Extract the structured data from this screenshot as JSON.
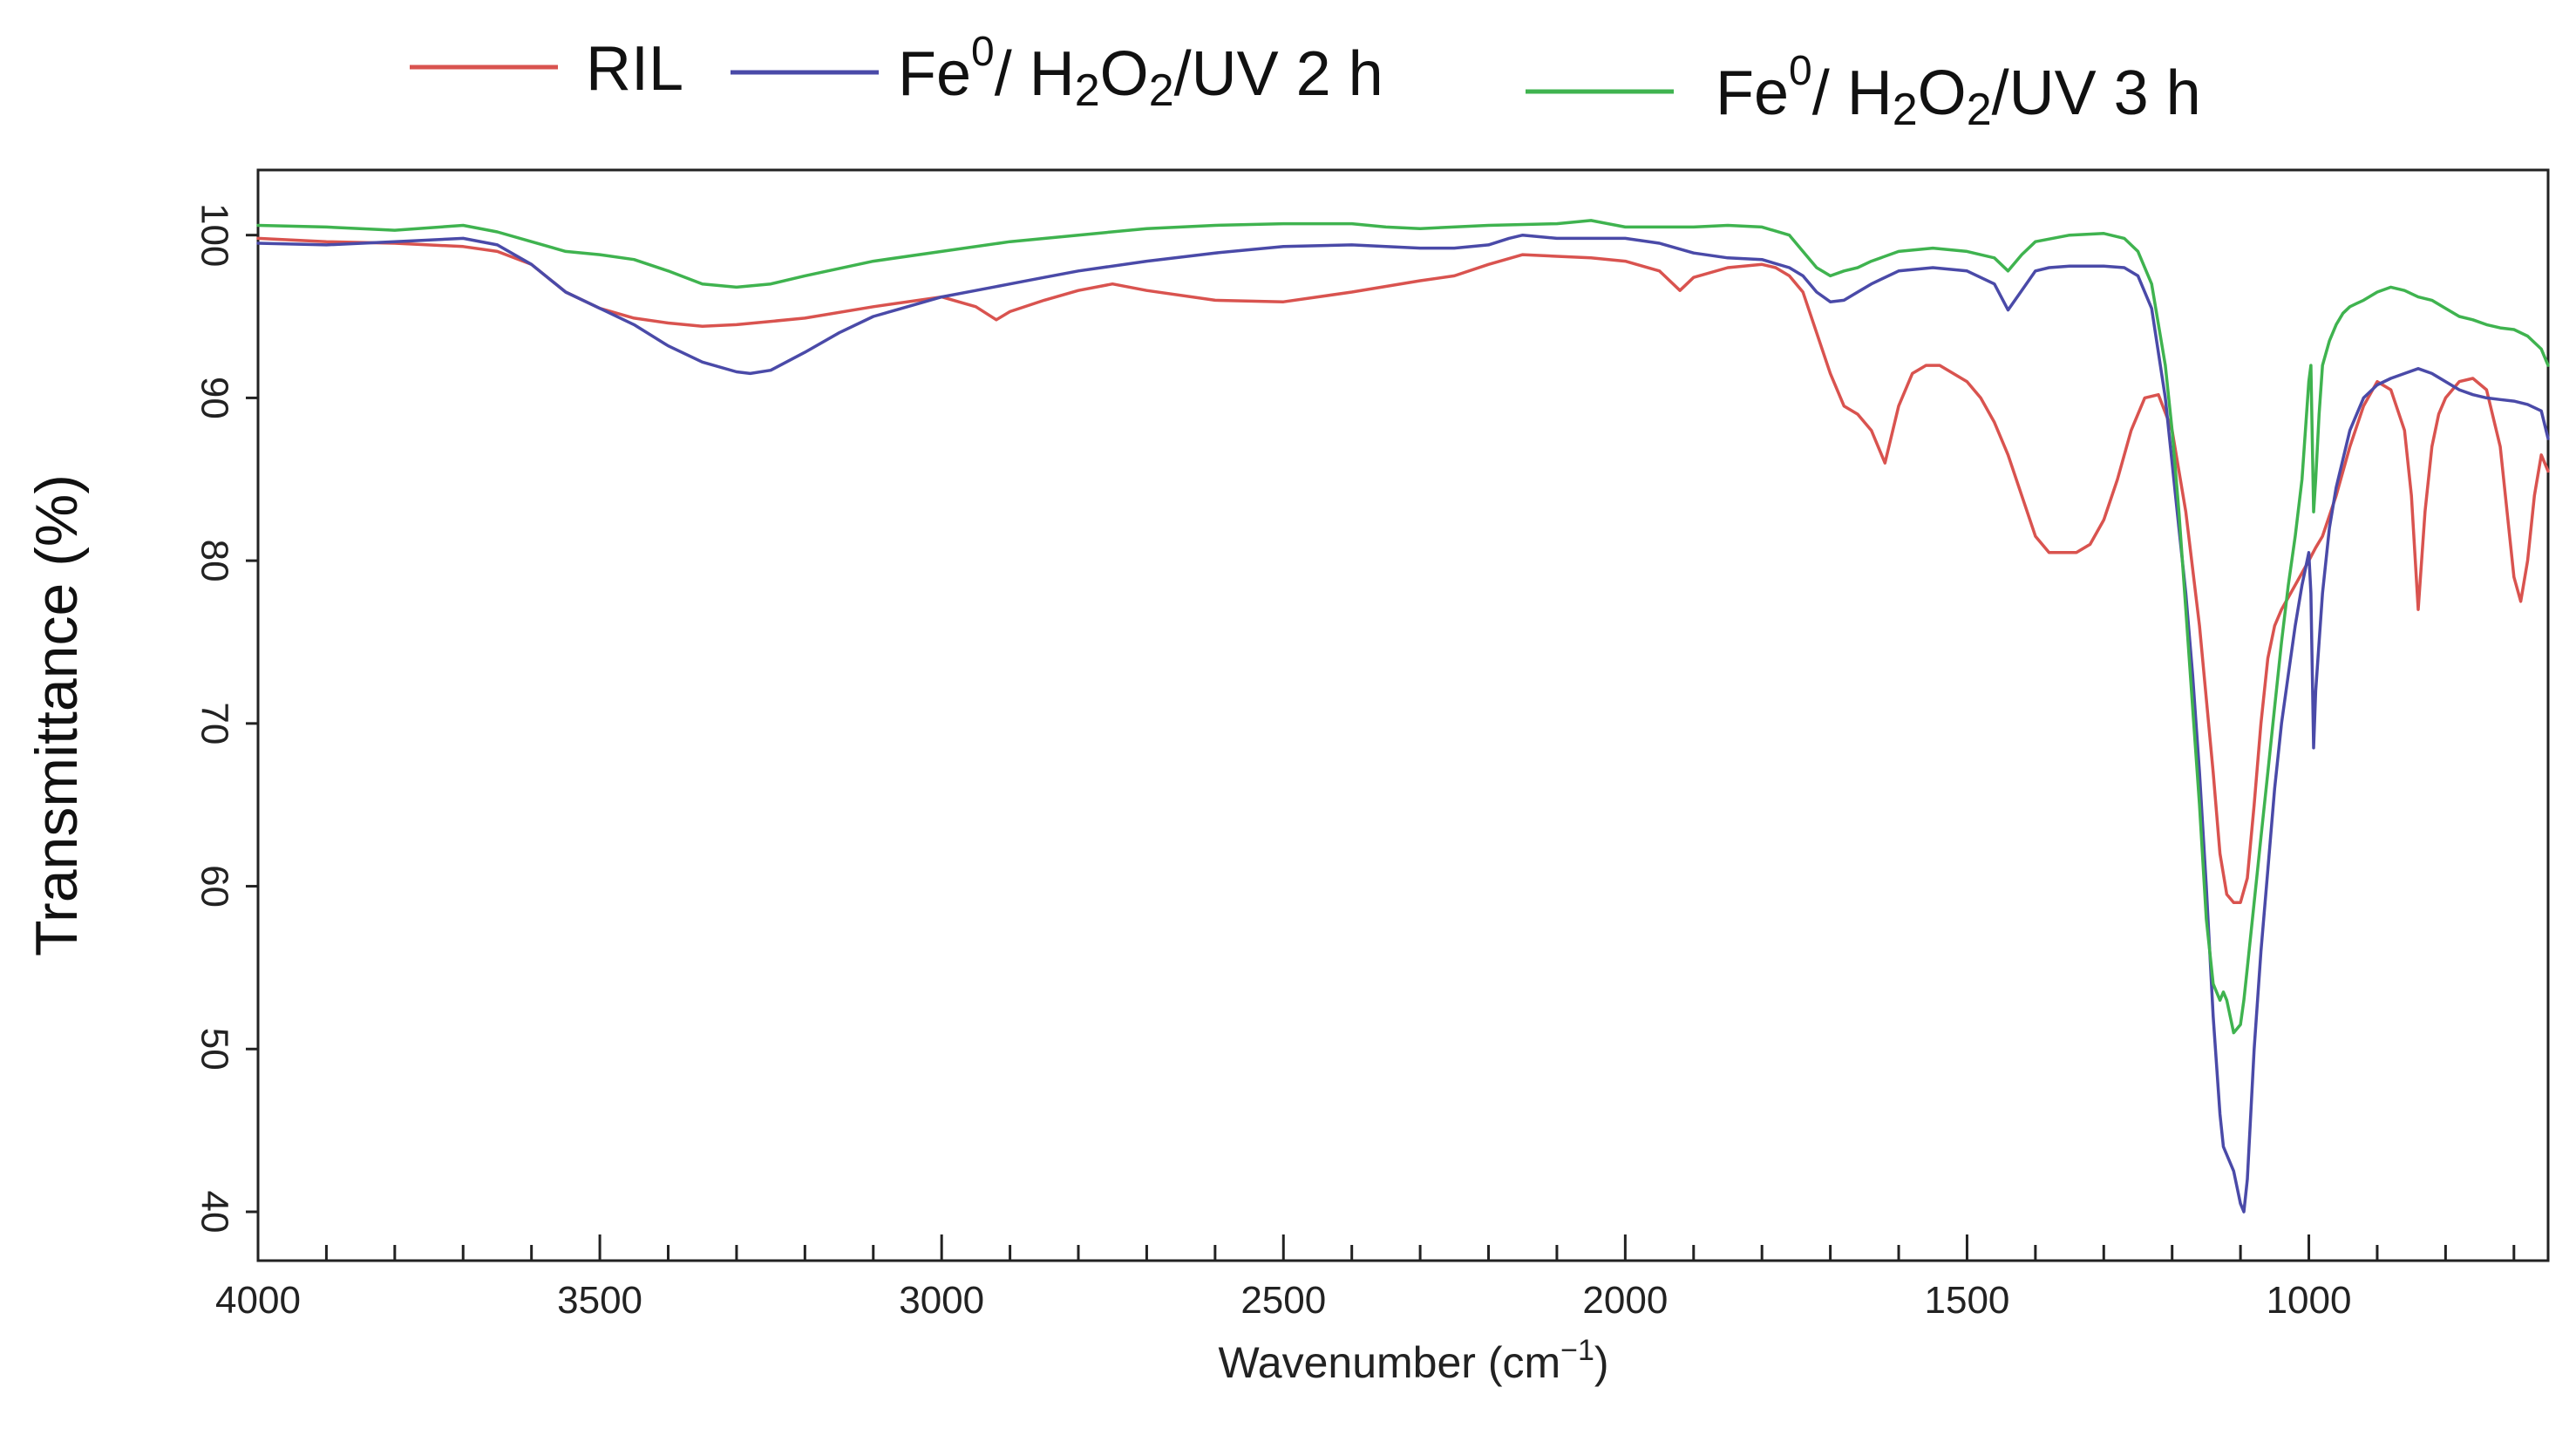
{
  "chart_data": {
    "type": "line",
    "xlabel_main": "Wavenumber (cm",
    "xlabel_sup": "−1",
    "xlabel_close": ")",
    "ylabel": "Transmittance (%)",
    "xlim": [
      4000,
      650
    ],
    "ylim": [
      37,
      104
    ],
    "x_reversed": true,
    "grid": false,
    "legend_position": "top",
    "x_ticks": [
      4000,
      3500,
      3000,
      2500,
      2000,
      1500,
      1000
    ],
    "x_tick_labels": [
      "4000",
      "3500",
      "3000",
      "2500",
      "2000",
      "1500",
      "1000"
    ],
    "x_minor_step": 100,
    "y_ticks": [
      40,
      50,
      60,
      70,
      80,
      90,
      100
    ],
    "y_tick_labels": [
      "40",
      "50",
      "60",
      "70",
      "80",
      "90",
      "100"
    ],
    "legend": [
      {
        "label_main": "RIL",
        "label_sup": "",
        "label_rest": "",
        "sub1": "",
        "mid": "",
        "sub2": "",
        "tail": ""
      },
      {
        "label_main": "Fe",
        "label_sup": "0",
        "label_rest": "/ H",
        "sub1": "2",
        "mid": "O",
        "sub2": "2",
        "tail": "/UV 2 h"
      },
      {
        "label_main": "Fe",
        "label_sup": "0",
        "label_rest": "/ H",
        "sub1": "2",
        "mid": "O",
        "sub2": "2",
        "tail": "/UV  3 h"
      }
    ],
    "series": [
      {
        "name": "RIL",
        "color": "#d9534f",
        "x": [
          4000,
          3900,
          3800,
          3700,
          3650,
          3600,
          3550,
          3500,
          3450,
          3400,
          3350,
          3300,
          3200,
          3100,
          3000,
          2950,
          2920,
          2900,
          2850,
          2800,
          2750,
          2700,
          2600,
          2500,
          2400,
          2300,
          2250,
          2200,
          2150,
          2100,
          2050,
          2000,
          1950,
          1920,
          1900,
          1850,
          1800,
          1780,
          1760,
          1740,
          1720,
          1700,
          1680,
          1660,
          1640,
          1620,
          1600,
          1580,
          1560,
          1540,
          1500,
          1480,
          1460,
          1440,
          1420,
          1400,
          1380,
          1360,
          1340,
          1320,
          1300,
          1280,
          1260,
          1240,
          1220,
          1200,
          1180,
          1160,
          1140,
          1130,
          1120,
          1110,
          1100,
          1090,
          1080,
          1070,
          1060,
          1050,
          1040,
          1020,
          1000,
          990,
          980,
          960,
          940,
          920,
          900,
          880,
          860,
          850,
          840,
          830,
          820,
          810,
          800,
          790,
          780,
          760,
          740,
          720,
          700,
          690,
          680,
          670,
          660,
          650
        ],
        "y": [
          99.8,
          99.6,
          99.5,
          99.3,
          99.0,
          98.2,
          96.5,
          95.5,
          94.9,
          94.6,
          94.4,
          94.5,
          94.9,
          95.6,
          96.2,
          95.6,
          94.8,
          95.3,
          96.0,
          96.6,
          97.0,
          96.6,
          96.0,
          95.9,
          96.5,
          97.2,
          97.5,
          98.2,
          98.8,
          98.7,
          98.6,
          98.4,
          97.8,
          96.6,
          97.4,
          98.0,
          98.2,
          98.0,
          97.5,
          96.5,
          94.0,
          91.5,
          89.5,
          89.0,
          88.0,
          86.0,
          89.5,
          91.5,
          92.0,
          92.0,
          91.0,
          90.0,
          88.5,
          86.5,
          84.0,
          81.5,
          80.5,
          80.5,
          80.5,
          81.0,
          82.5,
          85.0,
          88.0,
          90.0,
          90.2,
          88.0,
          83.0,
          76.0,
          67.0,
          62.0,
          59.5,
          59.0,
          59.0,
          60.5,
          65.0,
          70.0,
          74.0,
          76.0,
          77.0,
          78.5,
          80.0,
          80.8,
          81.5,
          84.0,
          87.0,
          89.5,
          91.0,
          90.5,
          88.0,
          84.0,
          77.0,
          83.0,
          87.0,
          89.0,
          90.0,
          90.5,
          91.0,
          91.2,
          90.5,
          87.0,
          79.0,
          77.5,
          80.0,
          84.0,
          86.5,
          85.5
        ]
      },
      {
        "name": "Fe0/ H2O2/UV 2 h",
        "color": "#4a4aa8",
        "x": [
          4000,
          3900,
          3800,
          3700,
          3650,
          3600,
          3550,
          3500,
          3450,
          3400,
          3350,
          3300,
          3280,
          3250,
          3200,
          3150,
          3100,
          3050,
          3000,
          2950,
          2900,
          2850,
          2800,
          2700,
          2600,
          2500,
          2400,
          2350,
          2300,
          2250,
          2200,
          2170,
          2150,
          2100,
          2000,
          1950,
          1900,
          1850,
          1800,
          1760,
          1740,
          1720,
          1700,
          1680,
          1660,
          1640,
          1600,
          1550,
          1500,
          1460,
          1440,
          1420,
          1400,
          1380,
          1350,
          1300,
          1270,
          1250,
          1230,
          1210,
          1200,
          1190,
          1180,
          1170,
          1160,
          1150,
          1140,
          1130,
          1125,
          1120,
          1110,
          1100,
          1095,
          1090,
          1085,
          1080,
          1070,
          1060,
          1050,
          1040,
          1030,
          1020,
          1010,
          1005,
          1000,
          997,
          993,
          990,
          985,
          980,
          970,
          960,
          940,
          920,
          900,
          880,
          860,
          840,
          820,
          800,
          780,
          760,
          740,
          720,
          700,
          680,
          660,
          650
        ],
        "y": [
          99.5,
          99.4,
          99.6,
          99.8,
          99.4,
          98.2,
          96.5,
          95.5,
          94.5,
          93.2,
          92.2,
          91.6,
          91.5,
          91.7,
          92.8,
          94.0,
          95.0,
          95.6,
          96.2,
          96.6,
          97.0,
          97.4,
          97.8,
          98.4,
          98.9,
          99.3,
          99.4,
          99.3,
          99.2,
          99.2,
          99.4,
          99.8,
          100.0,
          99.8,
          99.8,
          99.5,
          98.9,
          98.6,
          98.5,
          98.0,
          97.5,
          96.5,
          95.9,
          96.0,
          96.5,
          97.0,
          97.8,
          98.0,
          97.8,
          97.0,
          95.4,
          96.6,
          97.8,
          98.0,
          98.1,
          98.1,
          98.0,
          97.5,
          95.5,
          90.0,
          86.0,
          82.0,
          78.0,
          73.0,
          67.0,
          60.0,
          52.0,
          46.0,
          44.0,
          43.5,
          42.5,
          40.5,
          40.0,
          42.0,
          46.0,
          50.0,
          56.0,
          61.0,
          66.0,
          70.0,
          73.0,
          76.0,
          78.5,
          79.5,
          80.5,
          78.0,
          68.5,
          72.0,
          75.0,
          78.0,
          82.0,
          84.5,
          88.0,
          90.0,
          90.8,
          91.2,
          91.5,
          91.8,
          91.5,
          91.0,
          90.5,
          90.2,
          90.0,
          89.9,
          89.8,
          89.6,
          89.2,
          87.5
        ]
      },
      {
        "name": "Fe0/ H2O2/UV 3 h",
        "color": "#3fb34f",
        "x": [
          4000,
          3900,
          3800,
          3700,
          3650,
          3600,
          3550,
          3500,
          3450,
          3400,
          3350,
          3300,
          3250,
          3200,
          3100,
          3000,
          2900,
          2800,
          2700,
          2600,
          2500,
          2400,
          2350,
          2300,
          2200,
          2100,
          2050,
          2000,
          1900,
          1850,
          1800,
          1760,
          1740,
          1720,
          1700,
          1680,
          1660,
          1640,
          1600,
          1550,
          1500,
          1460,
          1440,
          1420,
          1400,
          1350,
          1300,
          1270,
          1250,
          1230,
          1210,
          1200,
          1190,
          1180,
          1170,
          1160,
          1150,
          1140,
          1130,
          1125,
          1120,
          1110,
          1100,
          1095,
          1090,
          1080,
          1070,
          1060,
          1050,
          1040,
          1030,
          1020,
          1010,
          1005,
          1000,
          997,
          993,
          990,
          985,
          980,
          970,
          960,
          950,
          940,
          930,
          920,
          900,
          880,
          860,
          840,
          820,
          800,
          780,
          760,
          740,
          720,
          700,
          680,
          660,
          650
        ],
        "y": [
          100.6,
          100.5,
          100.3,
          100.6,
          100.2,
          99.6,
          99.0,
          98.8,
          98.5,
          97.8,
          97.0,
          96.8,
          97.0,
          97.5,
          98.4,
          99.0,
          99.6,
          100.0,
          100.4,
          100.6,
          100.7,
          100.7,
          100.5,
          100.4,
          100.6,
          100.7,
          100.9,
          100.5,
          100.5,
          100.6,
          100.5,
          100.0,
          99.0,
          98.0,
          97.5,
          97.8,
          98.0,
          98.4,
          99.0,
          99.2,
          99.0,
          98.6,
          97.8,
          98.8,
          99.6,
          100.0,
          100.1,
          99.8,
          99.0,
          97.0,
          92.0,
          88.0,
          83.0,
          77.0,
          71.0,
          65.0,
          58.0,
          54.0,
          53.0,
          53.5,
          53.0,
          51.0,
          51.5,
          53.0,
          55.0,
          59.0,
          63.0,
          67.0,
          71.0,
          75.0,
          78.5,
          81.5,
          85.0,
          88.0,
          91.0,
          92.0,
          83.0,
          85.0,
          89.0,
          92.0,
          93.5,
          94.5,
          95.2,
          95.6,
          95.8,
          96.0,
          96.5,
          96.8,
          96.6,
          96.2,
          96.0,
          95.5,
          95.0,
          94.8,
          94.5,
          94.3,
          94.2,
          93.8,
          93.0,
          92.0
        ]
      }
    ]
  }
}
